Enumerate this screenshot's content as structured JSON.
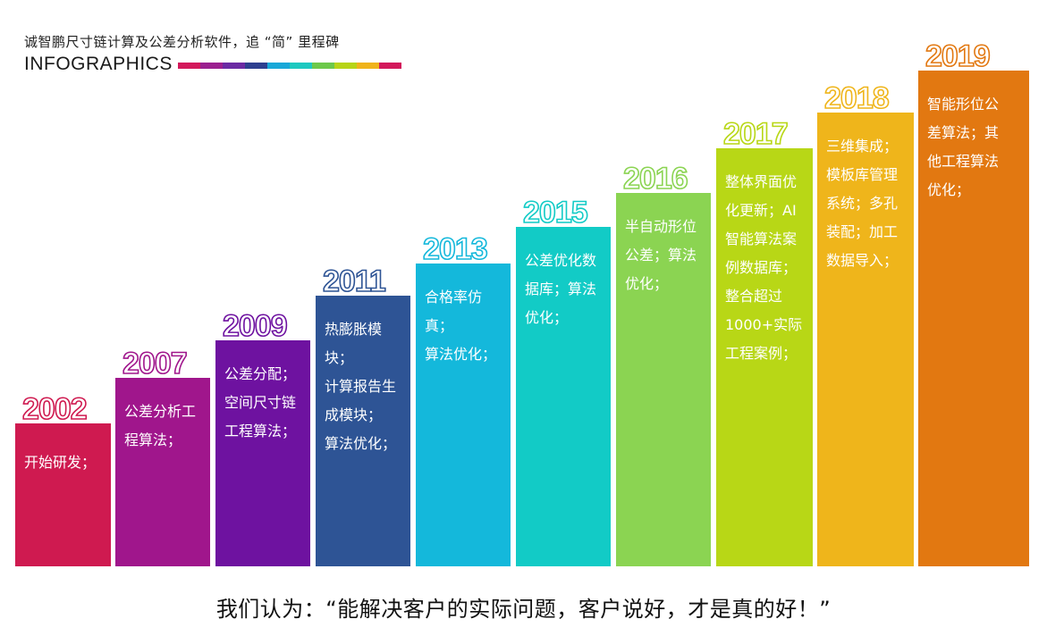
{
  "header": {
    "title": "诚智鹏尺寸链计算及公差分析软件，追 “简” 里程碑",
    "subtitle": "INFOGRAPHICS",
    "strip_colors": [
      "#d3185b",
      "#9b1f8f",
      "#6b2aa3",
      "#2d3f8f",
      "#18a8d8",
      "#1cc9c0",
      "#6cc94a",
      "#b7d416",
      "#f0b31a",
      "#d3185b"
    ]
  },
  "timeline": [
    {
      "year": "2002",
      "color": "#cf1a50",
      "text": "开始研发；"
    },
    {
      "year": "2007",
      "color": "#a0168c",
      "text": "公差分析工\n程算法；"
    },
    {
      "year": "2009",
      "color": "#6e12a0",
      "text": "公差分配；\n空间尺寸链\n工程算法；"
    },
    {
      "year": "2011",
      "color": "#2e5495",
      "text": "热膨胀模块；\n计算报告生\n成模块；\n算法优化；"
    },
    {
      "year": "2013",
      "color": "#14b8db",
      "text": "合格率仿真；\n算法优化；"
    },
    {
      "year": "2015",
      "color": "#12cbc6",
      "text": "公差优化数\n据库；算法\n优化；"
    },
    {
      "year": "2016",
      "color": "#8bd452",
      "text": "半自动形位\n公差；算法\n优化；"
    },
    {
      "year": "2017",
      "color": "#b8d716",
      "text": "整体界面优\n化更新；AI\n智能算法案\n例数据库；\n整合超过\n1000+实际\n工程案例；"
    },
    {
      "year": "2018",
      "color": "#efb51b",
      "text": "三维集成；\n模板库管理\n系统；多孔\n装配；加工\n数据导入；"
    },
    {
      "year": "2019",
      "color": "#e27811",
      "text": "智能形位公\n差算法；其\n他工程算法\n优化；"
    }
  ],
  "footer": {
    "quote": "我们认为：“能解决客户的实际问题，客户说好，才是真的好！”"
  }
}
